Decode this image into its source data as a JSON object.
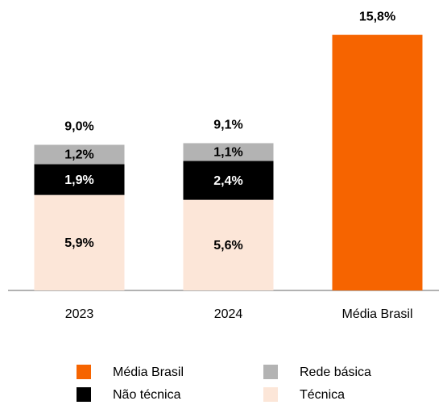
{
  "chart_data": {
    "type": "stacked_bar",
    "categories": [
      "2023",
      "2024",
      "Média Brasil"
    ],
    "series": [
      {
        "name": "Técnica",
        "color": "#fce6d8",
        "values": [
          5.9,
          5.6,
          null
        ],
        "value_labels": [
          "5,9%",
          "5,6%",
          null
        ]
      },
      {
        "name": "Não técnica",
        "color": "#000000",
        "values": [
          1.9,
          2.4,
          null
        ],
        "value_labels": [
          "1,9%",
          "2,4%",
          null
        ]
      },
      {
        "name": "Rede básica",
        "color": "#b3b3b3",
        "values": [
          1.2,
          1.1,
          null
        ],
        "value_labels": [
          "1,2%",
          "1,1%",
          null
        ]
      },
      {
        "name": "Média Brasil",
        "color": "#f66400",
        "values": [
          null,
          null,
          15.8
        ],
        "value_labels": [
          null,
          null,
          "15,8%"
        ]
      }
    ],
    "totals": [
      9.0,
      9.1,
      null
    ],
    "total_labels": [
      "9,0%",
      "9,1%",
      null
    ],
    "ylim": [
      0,
      17
    ],
    "legend": "bottom"
  }
}
